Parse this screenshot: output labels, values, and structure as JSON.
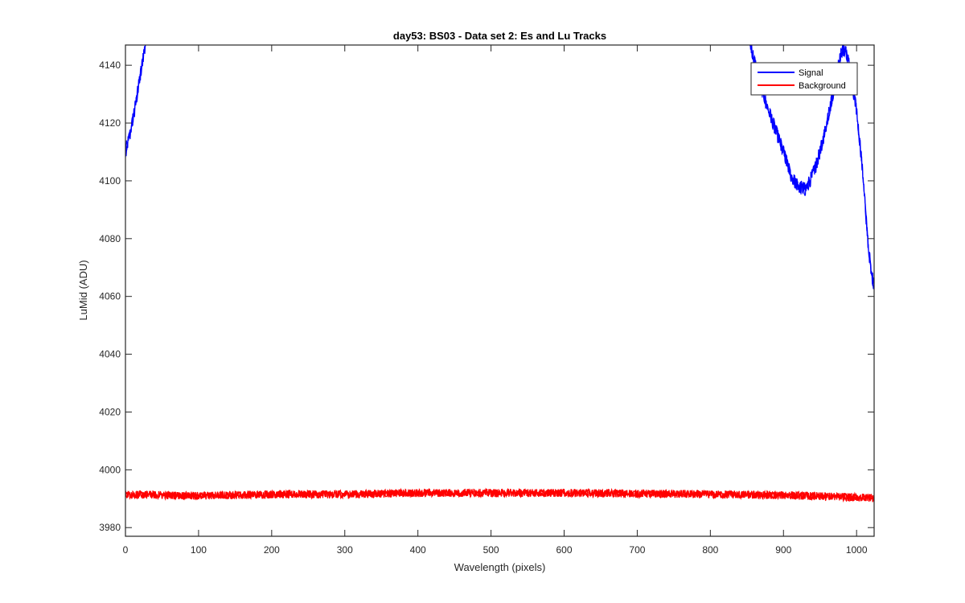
{
  "chart_data": {
    "type": "line",
    "title": "day53: BS03 - Data set 2: Es and Lu Tracks",
    "xlabel": "Wavelength (pixels)",
    "ylabel": "LuMid (ADU)",
    "xlim": [
      0,
      1024
    ],
    "ylim": [
      3977,
      4147
    ],
    "xticks": [
      0,
      100,
      200,
      300,
      400,
      500,
      600,
      700,
      800,
      900,
      1000
    ],
    "yticks": [
      3980,
      4000,
      4020,
      4040,
      4060,
      4080,
      4100,
      4120,
      4140
    ],
    "grid": false,
    "legend_position": "top-right",
    "series": [
      {
        "name": "Signal",
        "color": "#0000ff",
        "noise": 2.5,
        "x": [
          0,
          5,
          10,
          15,
          20,
          25,
          30,
          840,
          850,
          860,
          870,
          880,
          890,
          900,
          910,
          920,
          930,
          940,
          950,
          960,
          970,
          975,
          980,
          985,
          990,
          1000,
          1005,
          1010,
          1015,
          1020,
          1024
        ],
        "y": [
          4110,
          4115,
          4121,
          4128,
          4136,
          4144,
          4152,
          4162,
          4152,
          4142,
          4132,
          4124,
          4117,
          4110,
          4102,
          4098,
          4097,
          4102,
          4110,
          4121,
          4133,
          4140,
          4145,
          4146,
          4140,
          4124,
          4112,
          4098,
          4080,
          4068,
          4064
        ]
      },
      {
        "name": "Background",
        "color": "#ff0000",
        "noise": 1.4,
        "x": [
          0,
          100,
          200,
          300,
          400,
          500,
          600,
          700,
          800,
          900,
          1000,
          1024
        ],
        "y": [
          3991.5,
          3991,
          3991.5,
          3991.5,
          3992,
          3992,
          3992,
          3991.8,
          3991.5,
          3991.2,
          3990.5,
          3990.2
        ]
      }
    ]
  }
}
